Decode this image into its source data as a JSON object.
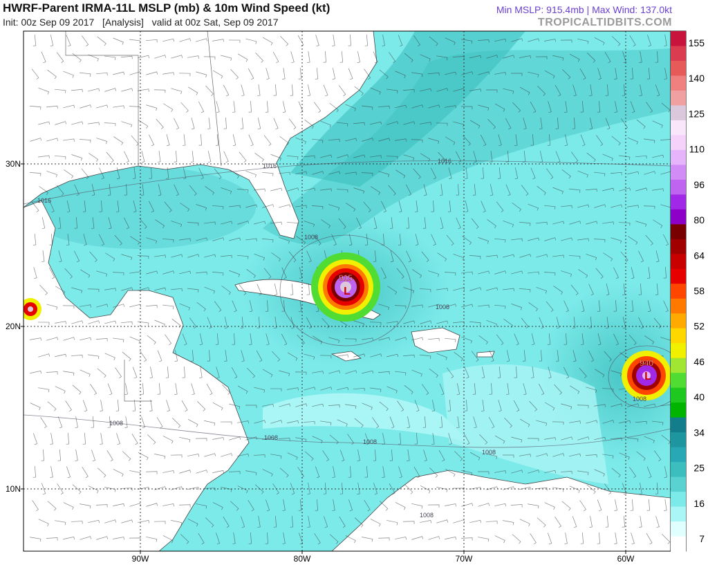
{
  "header": {
    "title": "HWRF-Parent IRMA-11L MSLP (mb) & 10m Wind Speed (kt)",
    "subtitle": "Init: 00z Sep 09 2017   [Analysis]   valid at 00z Sat, Sep 09 2017",
    "stats": "Min MSLP: 915.4mb | Max Wind: 137.0kt",
    "credit": "TROPICALTIDBITS.COM"
  },
  "map": {
    "lat_labels": [
      "30N",
      "20N",
      "10N"
    ],
    "lon_labels": [
      "90W",
      "80W",
      "70W",
      "60W"
    ],
    "isobar_labels": [
      "1016",
      "1016",
      "1016",
      "1008",
      "1008",
      "1008",
      "1008",
      "1008",
      "1008",
      "1008",
      "1008"
    ],
    "storms": [
      {
        "pressure": 915,
        "symbol": "L"
      },
      {
        "pressure": 940,
        "symbol": "L"
      }
    ]
  },
  "colorbar": {
    "ticks": [
      155,
      140,
      125,
      110,
      96,
      80,
      64,
      58,
      52,
      46,
      40,
      34,
      25,
      16,
      7
    ],
    "colors": [
      "#c8143c",
      "#dc3c50",
      "#e65a5a",
      "#f08080",
      "#f0a0a0",
      "#dcc8dc",
      "#fae6fa",
      "#f5d2fa",
      "#e6b4fa",
      "#d28cf5",
      "#be64f0",
      "#a028e6",
      "#8c00c8",
      "#780000",
      "#a00000",
      "#c80000",
      "#e60000",
      "#ff4600",
      "#ff7800",
      "#ffaa00",
      "#ffd700",
      "#f0f000",
      "#a0e632",
      "#50dc32",
      "#1ec81e",
      "#00b400",
      "#147d8c",
      "#1e96a0",
      "#28a8b4",
      "#3cbebe",
      "#5ad2d2",
      "#7deaea",
      "#aaf5f5",
      "#e0ffff",
      "#ffffff"
    ]
  }
}
